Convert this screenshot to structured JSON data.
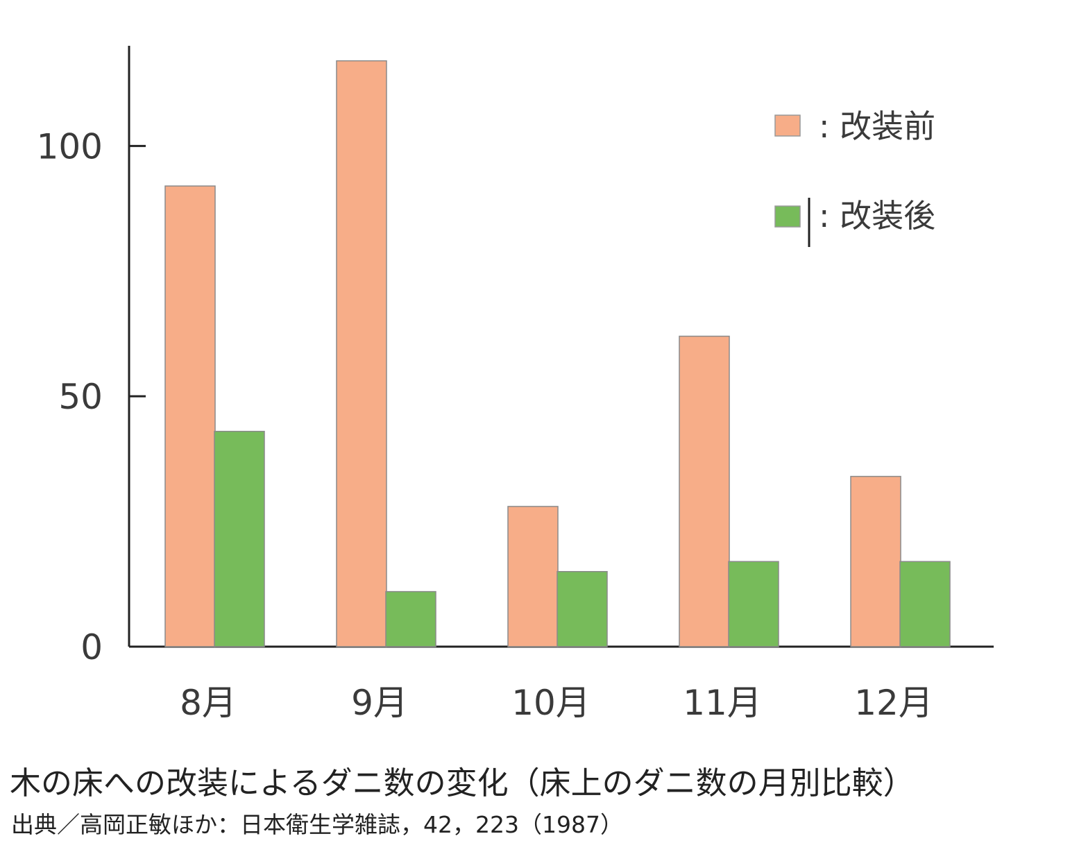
{
  "chart_data": {
    "type": "bar",
    "categories": [
      "8月",
      "9月",
      "10月",
      "11月",
      "12月"
    ],
    "series": [
      {
        "name": "改装前",
        "values": [
          92,
          117,
          28,
          62,
          34
        ],
        "color": "#f7ad88"
      },
      {
        "name": "改装後",
        "values": [
          43,
          11,
          15,
          17,
          17
        ],
        "color": "#77bb5a"
      }
    ],
    "yticks": [
      0,
      50,
      100
    ],
    "ylim": [
      0,
      120
    ],
    "legend": {
      "position": "top-right",
      "labels": [
        ": 改装前",
        ": 改装後"
      ]
    },
    "grid": false,
    "title": "木の床への改装によるダニ数の変化（床上のダニ数の月別比較）",
    "source": "出典／高岡正敏ほか：日本衛生学雑誌，42，223（1987）"
  }
}
